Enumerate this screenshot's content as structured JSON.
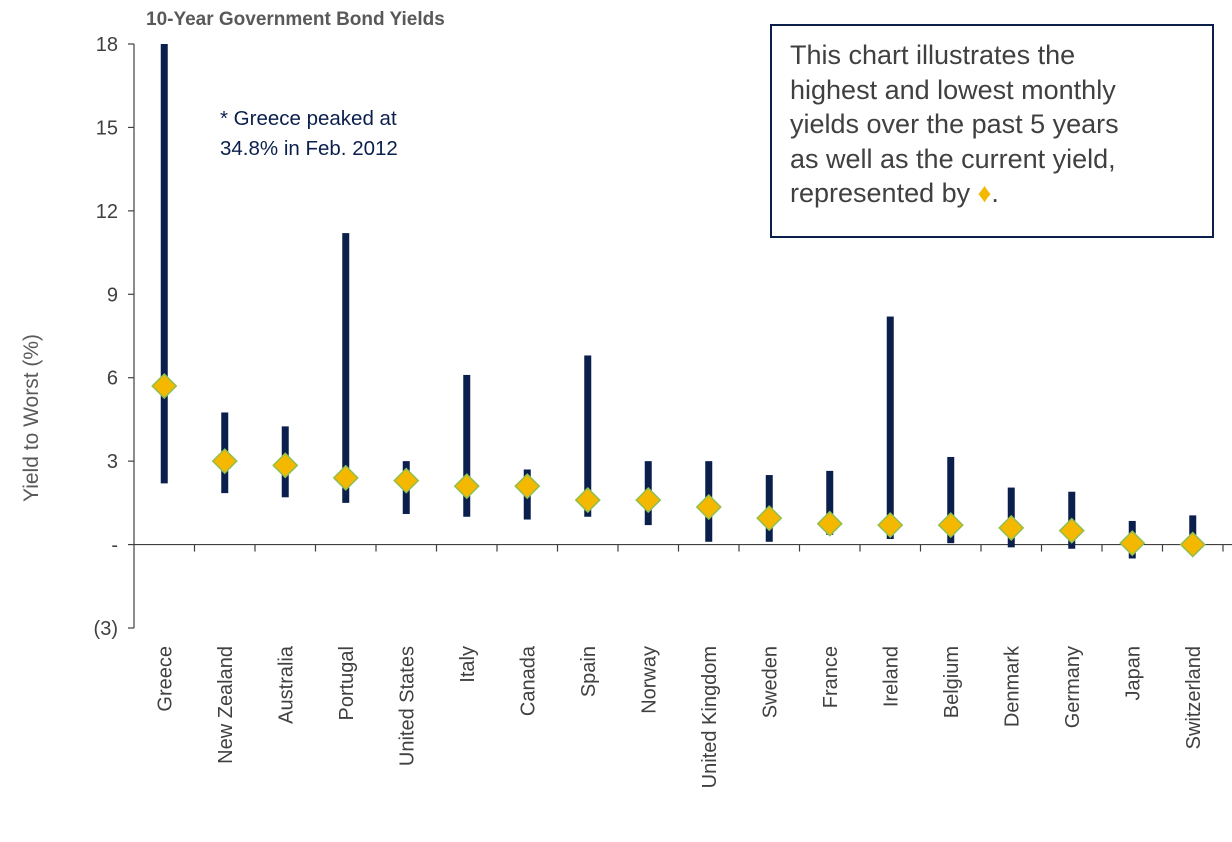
{
  "chart_data": {
    "type": "range",
    "title": "10-Year Government Bond Yields",
    "xlabel": "",
    "ylabel": "Yield to Worst (%)",
    "ylim": [
      -3,
      18
    ],
    "yticks": [
      {
        "value": 18,
        "label": "18"
      },
      {
        "value": 15,
        "label": "15"
      },
      {
        "value": 12,
        "label": "12"
      },
      {
        "value": 9,
        "label": "9"
      },
      {
        "value": 6,
        "label": "6"
      },
      {
        "value": 3,
        "label": "3"
      },
      {
        "value": 0,
        "label": "-"
      },
      {
        "value": -3,
        "label": "(3)"
      }
    ],
    "categories": [
      "Greece",
      "New Zealand",
      "Australia",
      "Portugal",
      "United States",
      "Italy",
      "Canada",
      "Spain",
      "Norway",
      "United Kingdom",
      "Sweden",
      "France",
      "Ireland",
      "Belgium",
      "Denmark",
      "Germany",
      "Japan",
      "Switzerland"
    ],
    "series": [
      {
        "name": "highest",
        "values": [
          34.8,
          4.75,
          4.25,
          11.2,
          3.0,
          6.1,
          2.7,
          6.8,
          3.0,
          3.0,
          2.5,
          2.65,
          8.2,
          3.15,
          2.05,
          1.9,
          0.85,
          1.05
        ]
      },
      {
        "name": "lowest",
        "values": [
          2.2,
          1.85,
          1.7,
          1.5,
          1.1,
          1.0,
          0.9,
          1.0,
          0.7,
          0.1,
          0.1,
          0.35,
          0.2,
          0.05,
          -0.1,
          -0.15,
          -0.5,
          0.0
        ]
      },
      {
        "name": "current",
        "values": [
          5.7,
          3.0,
          2.85,
          2.4,
          2.3,
          2.1,
          2.1,
          1.6,
          1.6,
          1.35,
          0.95,
          0.75,
          0.7,
          0.7,
          0.6,
          0.5,
          0.05,
          0.0
        ]
      }
    ],
    "annotations": [
      {
        "text_lines": [
          "* Greece peaked at",
          "34.8% in Feb. 2012"
        ]
      }
    ],
    "colors": {
      "range_bar": "#0b1f4d",
      "current_marker": "#f5b800",
      "marker_edge": "#8fbf4f",
      "axis": "#404040",
      "text": "#404040",
      "note_text": "#0b1f4d"
    },
    "grid": false,
    "legend": "none"
  },
  "note_box": {
    "lines": [
      "This chart illustrates the",
      "highest and lowest monthly",
      "yields over the past 5 years",
      "as well as the current yield,",
      "represented by "
    ],
    "diamond_glyph": "♦",
    "period": "."
  }
}
